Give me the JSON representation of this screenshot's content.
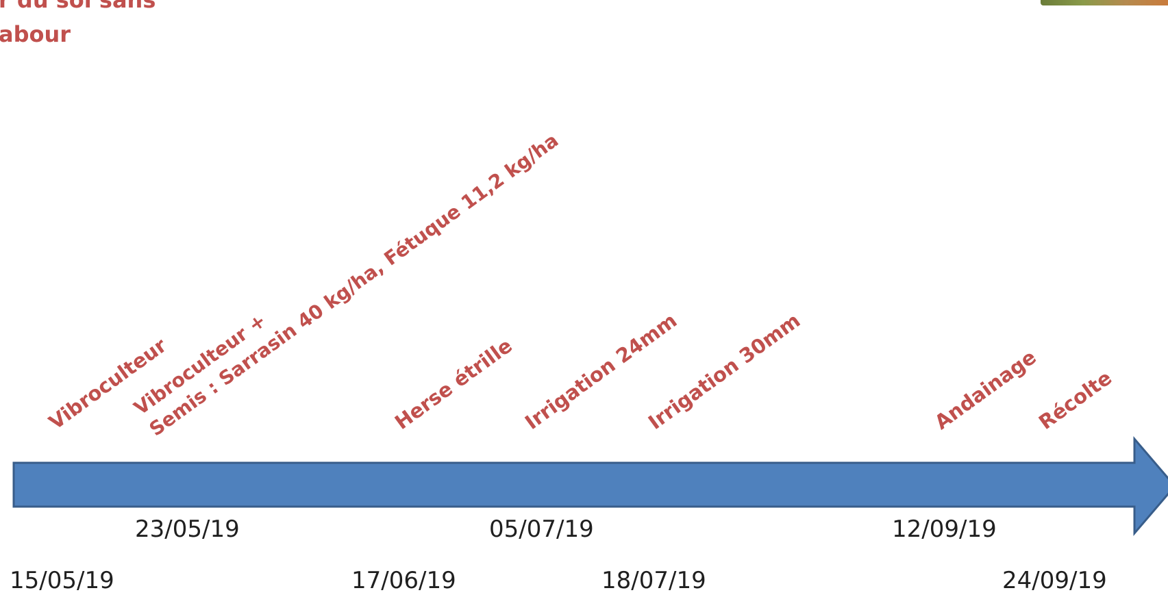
{
  "title": {
    "line1": "r du sol sans",
    "line2": "abour"
  },
  "colors": {
    "event_text": "#c0504d",
    "arrow_fill": "#4f81bd",
    "arrow_stroke": "#385d8a",
    "date_text": "#1f1f1f"
  },
  "events": [
    {
      "label": "Vibroculteur",
      "date": "15/05/19"
    },
    {
      "label_line1": "Vibroculteur +",
      "label_line2": "Semis : Sarrasin 40 kg/ha, Fétuque 11,2 kg/ha",
      "date": "23/05/19"
    },
    {
      "label": "Herse étrille",
      "date": "17/06/19"
    },
    {
      "label": "Irrigation 24mm",
      "date": "05/07/19"
    },
    {
      "label": "Irrigation 30mm",
      "date": "18/07/19"
    },
    {
      "label": "Andainage",
      "date": "12/09/19"
    },
    {
      "label": "Récolte",
      "date": "24/09/19"
    }
  ]
}
